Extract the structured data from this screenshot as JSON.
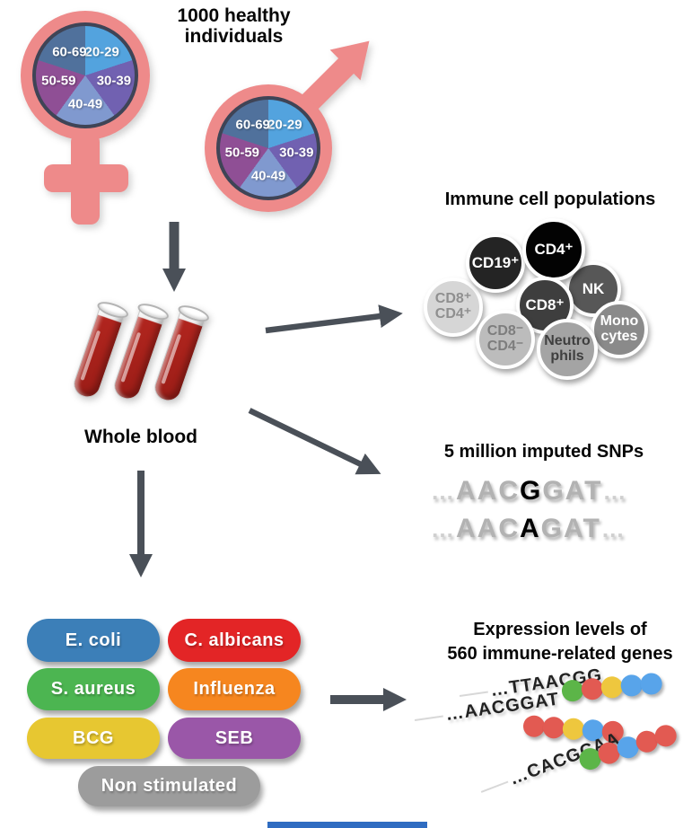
{
  "title": {
    "line1": "1000 healthy",
    "line2": "individuals"
  },
  "demographics": {
    "age_groups": [
      "20-29",
      "30-39",
      "40-49",
      "50-59",
      "60-69"
    ],
    "colors": {
      "20-29": "#53a3de",
      "30-39": "#7161b1",
      "40-49": "#8099cf",
      "50-59": "#8f4f95",
      "60-69": "#50719c"
    },
    "symbol_color": "#ee8a8a"
  },
  "whole_blood": {
    "label": "Whole blood"
  },
  "immune_cells": {
    "title": "Immune cell populations",
    "cells": [
      {
        "id": "cd8pos-cd4pos",
        "label": "CD8⁺\nCD4⁺",
        "bg": "#d6d6d6",
        "fg": "#8f8f8f"
      },
      {
        "id": "cd19pos",
        "label": "CD19⁺",
        "bg": "#242424",
        "fg": "#ffffff"
      },
      {
        "id": "nk",
        "label": "NK",
        "bg": "#575757",
        "fg": "#ffffff"
      },
      {
        "id": "cd4pos",
        "label": "CD4⁺",
        "bg": "#030303",
        "fg": "#ffffff"
      },
      {
        "id": "cd8pos",
        "label": "CD8⁺",
        "bg": "#3e3e3e",
        "fg": "#ffffff"
      },
      {
        "id": "monocytes",
        "label": "Mono\ncytes",
        "bg": "#8a8a8a",
        "fg": "#ffffff"
      },
      {
        "id": "cd8neg-cd4neg",
        "label": "CD8⁻\nCD4⁻",
        "bg": "#bcbcbc",
        "fg": "#7d7d7d"
      },
      {
        "id": "neutrophils",
        "label": "Neutro\nphils",
        "bg": "#a4a4a4",
        "fg": "#3f3f3f"
      }
    ]
  },
  "snps": {
    "title": "5 million imputed SNPs",
    "sequences": [
      {
        "prefix": "AAC",
        "variant": "G",
        "suffix": "GAT",
        "ellipsis": "…"
      },
      {
        "prefix": "AAC",
        "variant": "A",
        "suffix": "GAT",
        "ellipsis": "…"
      }
    ]
  },
  "stimulations": {
    "items": [
      {
        "label": "E. coli",
        "color": "#3c7fb8"
      },
      {
        "label": "C. albicans",
        "color": "#e32526"
      },
      {
        "label": "S. aureus",
        "color": "#4cb551"
      },
      {
        "label": "Influenza",
        "color": "#f6861f"
      },
      {
        "label": "BCG",
        "color": "#e7c731"
      },
      {
        "label": "SEB",
        "color": "#9a57a8"
      },
      {
        "label": "Non stimulated",
        "color": "#9c9c9c"
      }
    ]
  },
  "expression": {
    "title_line1": "Expression levels of",
    "title_line2": "560 immune-related genes",
    "rows": [
      {
        "sequence": "…TTAACGG",
        "dots": [
          "green",
          "red",
          "yellow",
          "blue",
          "blue"
        ]
      },
      {
        "sequence": "…AACGGAT",
        "dots": [
          "red",
          "red",
          "yellow",
          "blue",
          "red"
        ]
      },
      {
        "sequence": "…CACGCAA",
        "dots": [
          "green",
          "red",
          "blue",
          "red",
          "red"
        ]
      }
    ],
    "dot_colors": {
      "green": "#5cb548",
      "red": "#e25a52",
      "yellow": "#eec73e",
      "blue": "#58a4ea"
    }
  },
  "arrow_color": "#4a5058",
  "footer": {
    "bar_color": "#2f6cc1"
  }
}
